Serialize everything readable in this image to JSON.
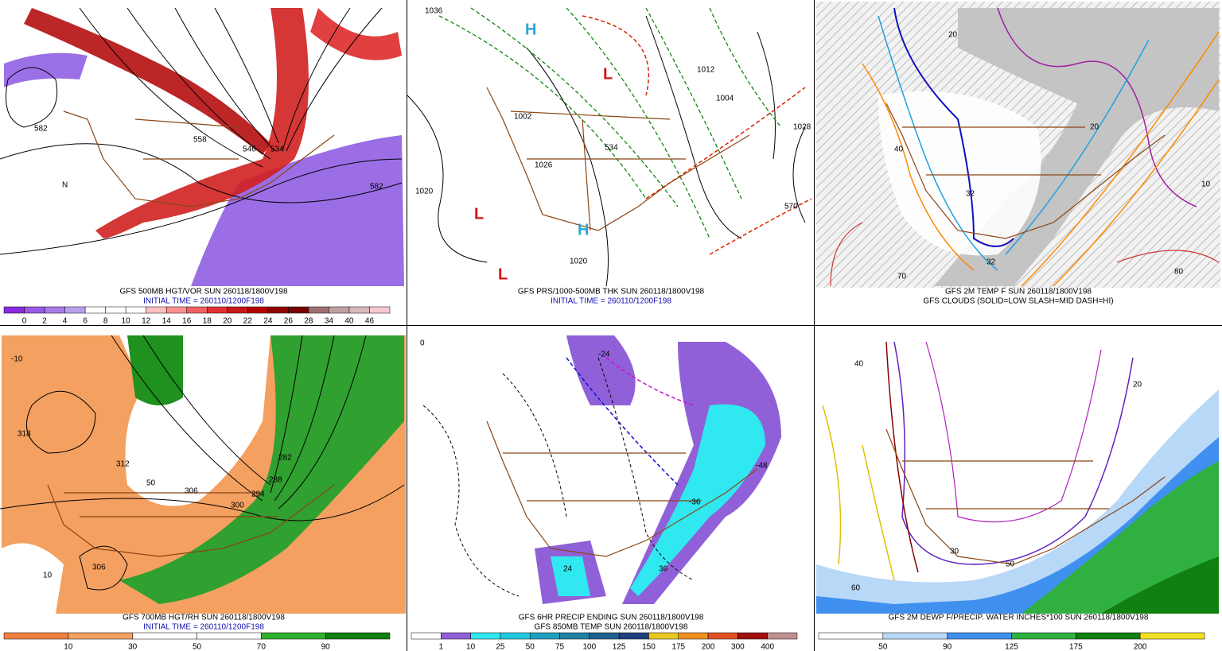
{
  "panels": [
    {
      "captions": [
        "GFS 500MB HGT/VOR SUN 260118/1800V198",
        "INITIAL TIME = 260110/1200F198"
      ],
      "colorbar": {
        "labels": [
          0,
          2,
          4,
          6,
          8,
          10,
          12,
          14,
          16,
          18,
          20,
          22,
          24,
          26,
          28,
          34,
          40,
          46
        ],
        "colors": [
          "#8a2be2",
          "#9b59e6",
          "#a97be8",
          "#b9a0ee",
          "#ffffff",
          "#ffffff",
          "#ffffff",
          "#ffc0c0",
          "#ff9090",
          "#f06060",
          "#e03030",
          "#c81818",
          "#b00000",
          "#900000",
          "#780000",
          "#a07070",
          "#c0a0a0",
          "#d8b8b8",
          "#f8c8d0"
        ]
      },
      "map_labels": [
        "582",
        "558",
        "546",
        "534",
        "582",
        "N"
      ]
    },
    {
      "captions": [
        "GFS PRS/1000-500MB THK SUN 260118/1800V198",
        "INITIAL TIME = 260110/1200F198"
      ],
      "map_labels": [
        "1036",
        "1012",
        "1004",
        "1020",
        "1020",
        "1002",
        "1028",
        "1026",
        "570",
        "534",
        "H",
        "H",
        "L",
        "L",
        "L"
      ]
    },
    {
      "captions": [
        "GFS 2M TEMP F SUN 260118/1800V198",
        "GFS CLOUDS (SOLID=LOW SLASH=MID DASH=HI)"
      ],
      "map_labels": [
        "20",
        "32",
        "32",
        "40",
        "70",
        "80",
        "20",
        "10"
      ]
    },
    {
      "captions": [
        "GFS 700MB HGT/RH SUN 260118/1800V198",
        "INITIAL TIME = 260110/1200F198"
      ],
      "colorbar": {
        "labels": [
          10,
          30,
          50,
          70,
          90
        ],
        "colors": [
          "#f08040",
          "#f4a060",
          "#ffffff",
          "#ffffff",
          "#30b030",
          "#108010"
        ]
      },
      "map_labels": [
        "-10",
        "318",
        "312",
        "306",
        "300",
        "294",
        "288",
        "282",
        "306",
        "50",
        "10"
      ]
    },
    {
      "captions": [
        "GFS 6HR PRECIP ENDING SUN 260118/1800V198",
        "GFS 850MB TEMP SUN 260118/1800V198"
      ],
      "colorbar": {
        "labels": [
          1,
          10,
          25,
          50,
          75,
          100,
          125,
          150,
          175,
          200,
          300,
          400
        ],
        "colors": [
          "#ffffff",
          "#9060d8",
          "#30e8f0",
          "#20c8e0",
          "#20a0c0",
          "#2080a0",
          "#206090",
          "#204080",
          "#e8c820",
          "#f09020",
          "#e05020",
          "#a01010",
          "#c09090"
        ]
      },
      "map_labels": [
        "0",
        "-24",
        "-36",
        "-48",
        "24",
        "36"
      ]
    },
    {
      "captions": [
        "GFS 2M DEWP F/PRECIP. WATER INCHES*100 SUN 260118/1800V198"
      ],
      "colorbar": {
        "labels": [
          50,
          90,
          125,
          175,
          200
        ],
        "colors": [
          "#ffffff",
          "#b8d8f8",
          "#4090f0",
          "#30b040",
          "#108010",
          "#f0e020"
        ]
      },
      "map_labels": [
        "40",
        "30",
        "50",
        "60",
        "20"
      ]
    }
  ]
}
